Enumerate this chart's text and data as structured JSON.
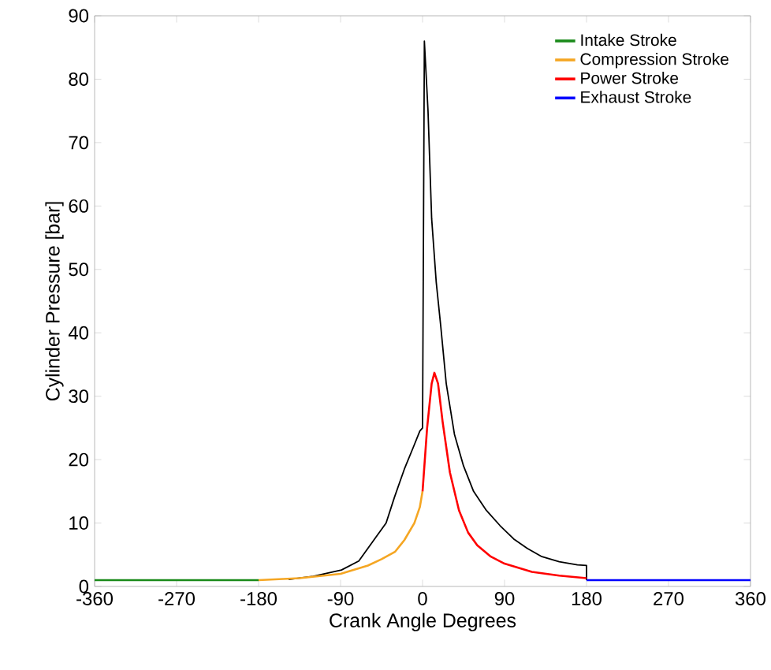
{
  "chart_data": {
    "type": "line",
    "xlabel": "Crank Angle Degrees",
    "ylabel": "Cylinder Pressure [bar]",
    "xlim": [
      -360,
      360
    ],
    "ylim": [
      0,
      90
    ],
    "xticks": [
      -360,
      -270,
      -180,
      -90,
      0,
      90,
      180,
      270,
      360
    ],
    "yticks": [
      0,
      10,
      20,
      30,
      40,
      50,
      60,
      70,
      80,
      90
    ],
    "grid": false,
    "legend": "top right",
    "marker": "none",
    "line_style": "solid",
    "series": [
      {
        "color": "#000000",
        "x": [
          -147,
          -120,
          -89,
          -70,
          -54,
          -40,
          -31,
          -20,
          -10,
          -3,
          0,
          2,
          6,
          10,
          15,
          20,
          26,
          35,
          45,
          56,
          70,
          85,
          100,
          115,
          131,
          150,
          170,
          180,
          180
        ],
        "values": [
          1.1,
          1.6,
          2.6,
          4,
          7.2,
          10,
          14,
          18.5,
          22,
          24.5,
          25,
          86,
          75,
          58,
          48,
          41,
          32,
          24,
          19,
          15,
          12,
          9.6,
          7.5,
          6,
          4.7,
          3.9,
          3.4,
          3.3,
          1
        ]
      },
      {
        "name": "Intake Stroke",
        "color": "#1a8a1a",
        "x": [
          -360,
          -180
        ],
        "values": [
          1,
          1
        ]
      },
      {
        "name": "Compression Stroke",
        "color": "#f5a623",
        "x": [
          -180,
          -135,
          -90,
          -60,
          -45,
          -30,
          -20,
          -9,
          -3,
          0
        ],
        "values": [
          1,
          1.3,
          2,
          3.3,
          4.3,
          5.5,
          7.3,
          10,
          12.5,
          15
        ]
      },
      {
        "name": "Power Stroke",
        "color": "#ff0000",
        "x": [
          0,
          5,
          10,
          13,
          17,
          22,
          30,
          40,
          50,
          60,
          75,
          90,
          120,
          150,
          180
        ],
        "values": [
          15,
          25,
          32,
          33.7,
          32,
          26,
          18,
          12,
          8.5,
          6.5,
          4.7,
          3.6,
          2.3,
          1.7,
          1.3
        ]
      },
      {
        "name": "Exhaust Stroke",
        "color": "#0000ff",
        "x": [
          180,
          360
        ],
        "values": [
          1,
          1
        ]
      }
    ]
  }
}
